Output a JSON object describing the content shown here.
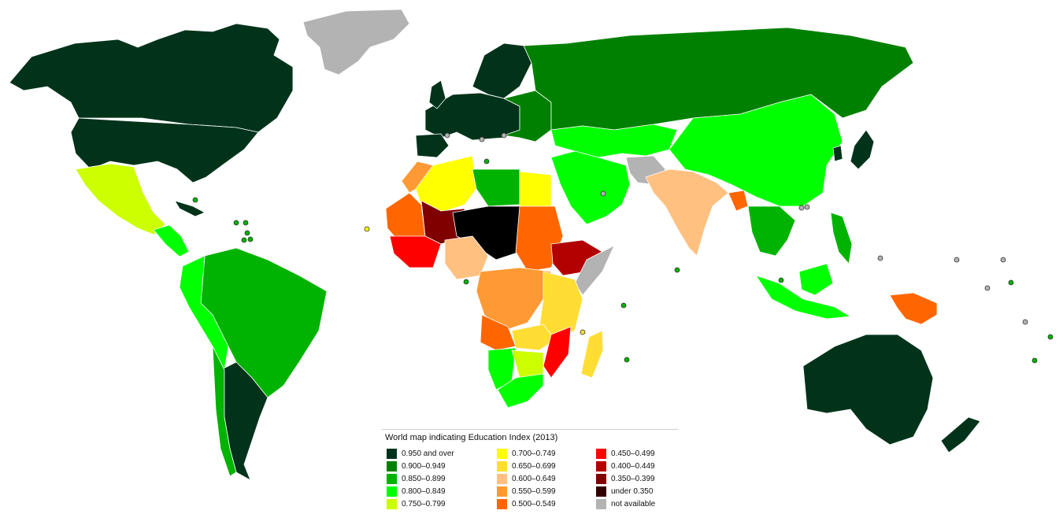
{
  "legend": {
    "title": "World map indicating Education Index (2013)",
    "items": [
      {
        "label": "0.950 and over",
        "color": "#00331a"
      },
      {
        "label": "0.900–0.949",
        "color": "#008000"
      },
      {
        "label": "0.850–0.899",
        "color": "#00b300"
      },
      {
        "label": "0.800–0.849",
        "color": "#00ff00"
      },
      {
        "label": "0.750–0.799",
        "color": "#ccff00"
      },
      {
        "label": "0.700–0.749",
        "color": "#ffff00"
      },
      {
        "label": "0.650–0.699",
        "color": "#ffdd33"
      },
      {
        "label": "0.600–0.649",
        "color": "#ffc080"
      },
      {
        "label": "0.550–0.599",
        "color": "#ff9933"
      },
      {
        "label": "0.500–0.549",
        "color": "#ff6600"
      },
      {
        "label": "0.450–0.499",
        "color": "#ff0000"
      },
      {
        "label": "0.400–0.449",
        "color": "#b30000"
      },
      {
        "label": "0.350–0.399",
        "color": "#800000"
      },
      {
        "label": "under 0.350",
        "color": "#330000"
      },
      {
        "label": "not available",
        "color": "#b3b3b3"
      }
    ]
  }
}
